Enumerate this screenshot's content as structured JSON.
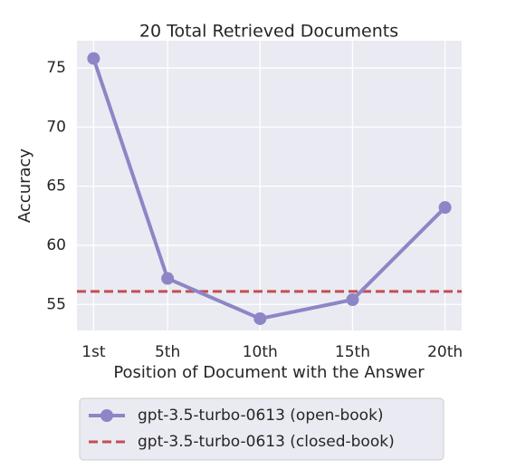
{
  "chart_data": {
    "type": "line",
    "title": "20 Total Retrieved Documents",
    "xlabel": "Position of Document with the Answer",
    "ylabel": "Accuracy",
    "x": [
      1,
      5,
      10,
      15,
      20
    ],
    "xlim": [
      0.1,
      20.9
    ],
    "xticks": [
      {
        "value": 1,
        "label": "1st"
      },
      {
        "value": 5,
        "label": "5th"
      },
      {
        "value": 10,
        "label": "10th"
      },
      {
        "value": 15,
        "label": "15th"
      },
      {
        "value": 20,
        "label": "20th"
      }
    ],
    "ylim": [
      52.8,
      77.3
    ],
    "yticks": [
      55,
      60,
      65,
      70,
      75
    ],
    "grid": true,
    "series": [
      {
        "name": "gpt-3.5-turbo-0613 (open-book)",
        "color": "#8c86c6",
        "values": [
          75.8,
          57.2,
          53.8,
          55.4,
          63.2
        ]
      }
    ],
    "reference_line": {
      "name": "gpt-3.5-turbo-0613 (closed-book)",
      "color": "#c44e52",
      "value": 56.1,
      "dashed": true
    }
  }
}
